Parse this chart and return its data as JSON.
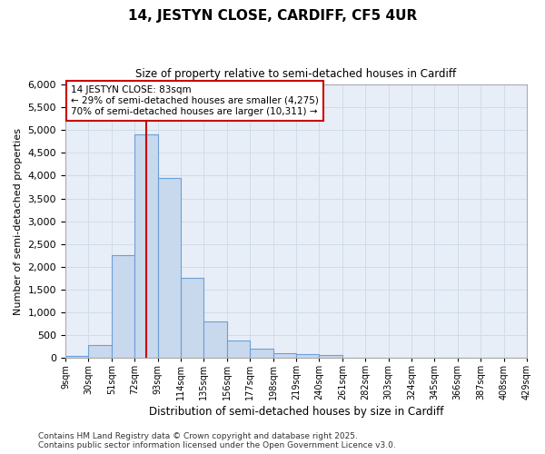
{
  "title": "14, JESTYN CLOSE, CARDIFF, CF5 4UR",
  "subtitle": "Size of property relative to semi-detached houses in Cardiff",
  "xlabel": "Distribution of semi-detached houses by size in Cardiff",
  "ylabel": "Number of semi-detached properties",
  "footer_line1": "Contains HM Land Registry data © Crown copyright and database right 2025.",
  "footer_line2": "Contains public sector information licensed under the Open Government Licence v3.0.",
  "bar_color": "#c9d9ed",
  "bar_edge_color": "#6a9fd8",
  "grid_color": "#d0dcea",
  "plot_bg_color": "#e8eef7",
  "fig_bg_color": "#ffffff",
  "property_line_color": "#cc0000",
  "property_sqm": 83,
  "annotation_text": "14 JESTYN CLOSE: 83sqm\n← 29% of semi-detached houses are smaller (4,275)\n70% of semi-detached houses are larger (10,311) →",
  "annotation_box_facecolor": "#ffffff",
  "annotation_box_edgecolor": "#cc0000",
  "bins_left": [
    9,
    30,
    51,
    72,
    93,
    114,
    135,
    156,
    177,
    198,
    219,
    240,
    261,
    282,
    303,
    324,
    345,
    366,
    387,
    408
  ],
  "counts": [
    30,
    280,
    2250,
    4900,
    3950,
    1750,
    800,
    375,
    200,
    100,
    75,
    50,
    0,
    0,
    0,
    0,
    0,
    0,
    0,
    0
  ],
  "bin_width": 21,
  "ylim": [
    0,
    6000
  ],
  "yticks": [
    0,
    500,
    1000,
    1500,
    2000,
    2500,
    3000,
    3500,
    4000,
    4500,
    5000,
    5500,
    6000
  ],
  "xlim_left": 9,
  "xlim_right": 429,
  "xtick_labels": [
    "9sqm",
    "30sqm",
    "51sqm",
    "72sqm",
    "93sqm",
    "114sqm",
    "135sqm",
    "156sqm",
    "177sqm",
    "198sqm",
    "219sqm",
    "240sqm",
    "261sqm",
    "282sqm",
    "303sqm",
    "324sqm",
    "345sqm",
    "366sqm",
    "387sqm",
    "408sqm",
    "429sqm"
  ]
}
